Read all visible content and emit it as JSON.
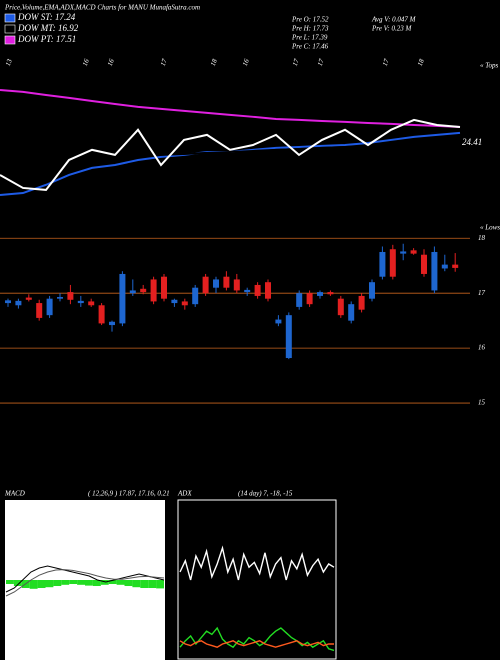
{
  "header": {
    "title": "Price,Volume,EMA,ADX,MACD Charts for MANU MunafaSutra.com",
    "info": [
      "Pre O: 17.52",
      "Pre H: 17.73",
      "Pre L: 17.39",
      "Pre C: 17.46",
      "Avg V: 0.047 M",
      "Pre V: 0.23 M"
    ]
  },
  "chart_data": [
    {
      "type": "line",
      "corner_label": "« Tops",
      "annotation": "24.41",
      "date_labels": [
        "13",
        "16",
        "16",
        "17",
        "18",
        "16",
        "17",
        "17",
        "17",
        "18"
      ],
      "ylim": [
        12.83,
        20.55
      ],
      "series": [
        {
          "name": "DOW ST: 17.24",
          "color": "#1e5be6",
          "values": [
            14.42,
            14.51,
            14.88,
            15.33,
            15.65,
            15.78,
            16.01,
            16.15,
            16.24,
            16.37,
            16.37,
            16.47,
            16.56,
            16.6,
            16.65,
            16.69,
            16.78,
            16.92,
            17.06,
            17.15,
            17.24
          ]
        },
        {
          "name": "DOW MT: 16.92",
          "color": "#000000",
          "values": [
            16.69,
            16.56,
            16.47,
            16.37,
            16.33,
            16.28,
            16.24,
            16.24,
            16.28,
            16.33,
            16.37,
            16.42,
            16.47,
            16.51,
            16.56,
            16.6,
            16.65,
            16.69,
            16.78,
            16.87,
            16.92
          ]
        },
        {
          "name": "DOW PT: 17.51",
          "color": "#e020e0",
          "values": [
            19.19,
            19.1,
            18.96,
            18.83,
            18.69,
            18.55,
            18.42,
            18.33,
            18.24,
            18.15,
            18.06,
            17.97,
            17.87,
            17.83,
            17.78,
            17.74,
            17.69,
            17.65,
            17.6,
            17.56,
            17.51
          ]
        },
        {
          "color": "#ffffff",
          "values": [
            15.33,
            14.74,
            14.65,
            16.01,
            16.47,
            16.24,
            17.38,
            15.78,
            16.92,
            17.15,
            16.47,
            16.69,
            17.15,
            16.24,
            16.92,
            17.38,
            16.69,
            17.38,
            17.83,
            17.6,
            17.51
          ]
        }
      ]
    },
    {
      "type": "candlestick",
      "corner_label": "« Lows",
      "up_color": "#1e66d0",
      "down_color": "#e32020",
      "grid_color": "#c8641e",
      "ylim": [
        13.6,
        18.15
      ],
      "yticks": [
        15,
        16,
        17,
        18
      ],
      "open": [
        16.82,
        16.78,
        16.92,
        16.82,
        16.6,
        16.9,
        17.02,
        16.82,
        16.85,
        16.78,
        16.42,
        16.45,
        17.0,
        17.08,
        17.25,
        17.3,
        16.82,
        16.85,
        16.8,
        17.3,
        17.1,
        17.3,
        17.25,
        17.02,
        17.15,
        17.2,
        16.45,
        15.82,
        16.75,
        17.0,
        16.95,
        17.02,
        16.9,
        16.5,
        16.95,
        16.9,
        17.3,
        17.8,
        17.72,
        17.78,
        17.7,
        17.05,
        17.45,
        17.52
      ],
      "high": [
        16.9,
        16.9,
        16.98,
        16.88,
        16.95,
        17.0,
        17.15,
        16.95,
        16.9,
        16.82,
        16.5,
        17.4,
        17.25,
        17.15,
        17.3,
        17.35,
        16.9,
        16.9,
        17.15,
        17.35,
        17.3,
        17.4,
        17.35,
        17.1,
        17.2,
        17.25,
        16.6,
        16.65,
        17.05,
        17.05,
        17.05,
        17.05,
        16.95,
        16.85,
        17.0,
        17.25,
        17.85,
        17.88,
        17.9,
        17.82,
        17.8,
        17.85,
        17.7,
        17.73
      ],
      "low": [
        16.75,
        16.72,
        16.85,
        16.5,
        16.55,
        16.85,
        16.8,
        16.75,
        16.75,
        16.42,
        16.3,
        16.4,
        16.95,
        16.98,
        16.8,
        16.85,
        16.75,
        16.7,
        16.75,
        16.95,
        17.0,
        17.05,
        17.0,
        16.95,
        16.9,
        16.85,
        16.4,
        15.8,
        16.7,
        16.75,
        16.9,
        16.95,
        16.55,
        16.45,
        16.65,
        16.85,
        17.25,
        17.25,
        17.6,
        17.7,
        17.3,
        17.0,
        17.4,
        17.39
      ],
      "close": [
        16.87,
        16.86,
        16.88,
        16.55,
        16.9,
        16.93,
        16.88,
        16.86,
        16.78,
        16.45,
        16.48,
        17.35,
        17.05,
        17.02,
        16.85,
        16.9,
        16.88,
        16.78,
        17.1,
        17.0,
        17.25,
        17.1,
        17.05,
        17.06,
        16.95,
        16.9,
        16.52,
        16.6,
        17.0,
        16.8,
        17.02,
        16.98,
        16.6,
        16.8,
        16.7,
        17.2,
        17.75,
        17.3,
        17.76,
        17.72,
        17.35,
        17.75,
        17.52,
        17.46
      ]
    },
    {
      "type": "line",
      "title": "MACD",
      "subtitle": "( 12,26,9 ) 17.87, 17.16, 0.21",
      "ylim": [
        -2,
        2
      ],
      "hist_color": "#22dd22",
      "histogram": [
        0.1,
        0.15,
        0.2,
        0.22,
        0.2,
        0.18,
        0.15,
        0.12,
        0.1,
        0.12,
        0.14,
        0.15,
        0.12,
        0.1,
        0.12,
        0.15,
        0.18,
        0.2,
        0.2,
        0.21
      ],
      "series": [
        {
          "color": "#000000",
          "values": [
            -0.3,
            -0.2,
            0.0,
            0.2,
            0.3,
            0.35,
            0.3,
            0.25,
            0.2,
            0.15,
            0.1,
            0.0,
            -0.05,
            0.0,
            0.05,
            0.1,
            0.15,
            0.1,
            0.05,
            0.0
          ]
        },
        {
          "color": "#555555",
          "values": [
            -0.4,
            -0.3,
            -0.15,
            0.0,
            0.12,
            0.2,
            0.25,
            0.26,
            0.24,
            0.2,
            0.16,
            0.1,
            0.05,
            0.02,
            0.02,
            0.05,
            0.08,
            0.09,
            0.07,
            0.05
          ]
        }
      ]
    },
    {
      "type": "line",
      "title": "ADX",
      "subtitle": "(14 day) 7, -18, -15",
      "ylim": [
        0,
        100
      ],
      "series": [
        {
          "color": "#ffffff",
          "values": [
            55,
            62,
            50,
            65,
            58,
            68,
            52,
            60,
            70,
            55,
            63,
            50,
            66,
            58,
            61,
            54,
            67,
            52,
            60,
            64,
            50,
            62,
            57,
            66,
            53,
            59,
            63,
            55,
            60,
            58
          ]
        },
        {
          "color": "#22dd22",
          "values": [
            8,
            12,
            15,
            10,
            14,
            18,
            16,
            20,
            13,
            10,
            8,
            12,
            10,
            14,
            12,
            9,
            11,
            15,
            18,
            20,
            17,
            14,
            12,
            9,
            11,
            8,
            10,
            12,
            7,
            6
          ]
        },
        {
          "color": "#ff5a1e",
          "values": [
            12,
            10,
            9,
            11,
            12,
            10,
            9,
            8,
            10,
            11,
            12,
            10,
            9,
            10,
            11,
            12,
            10,
            9,
            8,
            9,
            10,
            11,
            12,
            10,
            9,
            10,
            11,
            9,
            10,
            10
          ]
        }
      ]
    }
  ]
}
